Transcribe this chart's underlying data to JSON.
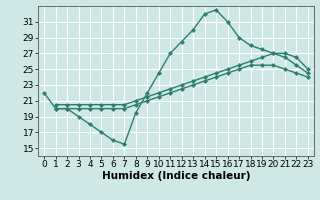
{
  "xlabel": "Humidex (Indice chaleur)",
  "background_color": "#cde8e5",
  "grid_color": "#ffffff",
  "line_color": "#2e7d6e",
  "xlim": [
    -0.5,
    23.5
  ],
  "ylim": [
    14.0,
    33.0
  ],
  "xticks": [
    0,
    1,
    2,
    3,
    4,
    5,
    6,
    7,
    8,
    9,
    10,
    11,
    12,
    13,
    14,
    15,
    16,
    17,
    18,
    19,
    20,
    21,
    22,
    23
  ],
  "yticks": [
    15,
    17,
    19,
    21,
    23,
    25,
    27,
    29,
    31
  ],
  "line1_x": [
    0,
    1,
    2,
    3,
    4,
    5,
    6,
    7,
    8,
    9,
    10,
    11,
    12,
    13,
    14,
    15,
    16,
    17,
    18,
    19,
    20,
    21,
    22,
    23
  ],
  "line1_y": [
    22.0,
    20.0,
    20.0,
    19.0,
    18.0,
    17.0,
    16.0,
    15.5,
    19.5,
    22.0,
    24.5,
    27.0,
    28.5,
    30.0,
    32.0,
    32.5,
    31.0,
    29.0,
    28.0,
    27.5,
    27.0,
    26.5,
    25.5,
    24.5
  ],
  "line2_x": [
    1,
    2,
    3,
    4,
    5,
    6,
    7,
    8,
    9,
    10,
    11,
    12,
    13,
    14,
    15,
    16,
    17,
    18,
    19,
    20,
    21,
    22,
    23
  ],
  "line2_y": [
    20.5,
    20.5,
    20.5,
    20.5,
    20.5,
    20.5,
    20.5,
    21.0,
    21.5,
    22.0,
    22.5,
    23.0,
    23.5,
    24.0,
    24.5,
    25.0,
    25.5,
    26.0,
    26.5,
    27.0,
    27.0,
    26.5,
    25.0
  ],
  "line3_x": [
    1,
    2,
    3,
    4,
    5,
    6,
    7,
    8,
    9,
    10,
    11,
    12,
    13,
    14,
    15,
    16,
    17,
    18,
    19,
    20,
    21,
    22,
    23
  ],
  "line3_y": [
    20.0,
    20.0,
    20.0,
    20.0,
    20.0,
    20.0,
    20.0,
    20.5,
    21.0,
    21.5,
    22.0,
    22.5,
    23.0,
    23.5,
    24.0,
    24.5,
    25.0,
    25.5,
    25.5,
    25.5,
    25.0,
    24.5,
    24.0
  ],
  "marker_size": 2.5,
  "line_width": 1.0,
  "font_size": 6.5
}
